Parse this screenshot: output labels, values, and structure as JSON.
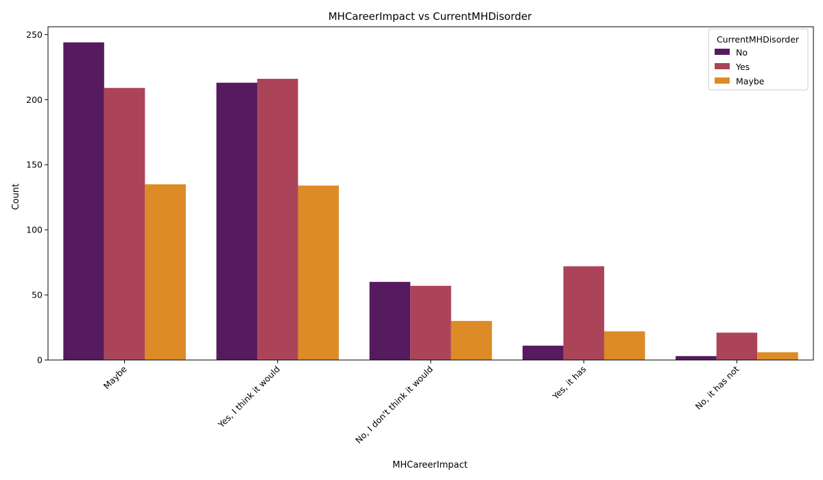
{
  "chart_data": {
    "type": "bar",
    "title": "MHCareerImpact vs CurrentMHDisorder",
    "xlabel": "MHCareerImpact",
    "ylabel": "Count",
    "categories": [
      "Maybe",
      "Yes, I think it would",
      "No, I don't think it would",
      "Yes, it has",
      "No, it has not"
    ],
    "series": [
      {
        "name": "No",
        "color": "#561a5f",
        "values": [
          244,
          213,
          60,
          11,
          3
        ]
      },
      {
        "name": "Yes",
        "color": "#ac4459",
        "values": [
          209,
          216,
          57,
          72,
          21
        ]
      },
      {
        "name": "Maybe",
        "color": "#dd8b27",
        "values": [
          135,
          134,
          30,
          22,
          6
        ]
      }
    ],
    "ylim": [
      0,
      256
    ],
    "yticks": [
      0,
      50,
      100,
      150,
      200,
      250
    ],
    "legend": {
      "title": "CurrentMHDisorder",
      "position": "top-right"
    },
    "grid": false
  }
}
